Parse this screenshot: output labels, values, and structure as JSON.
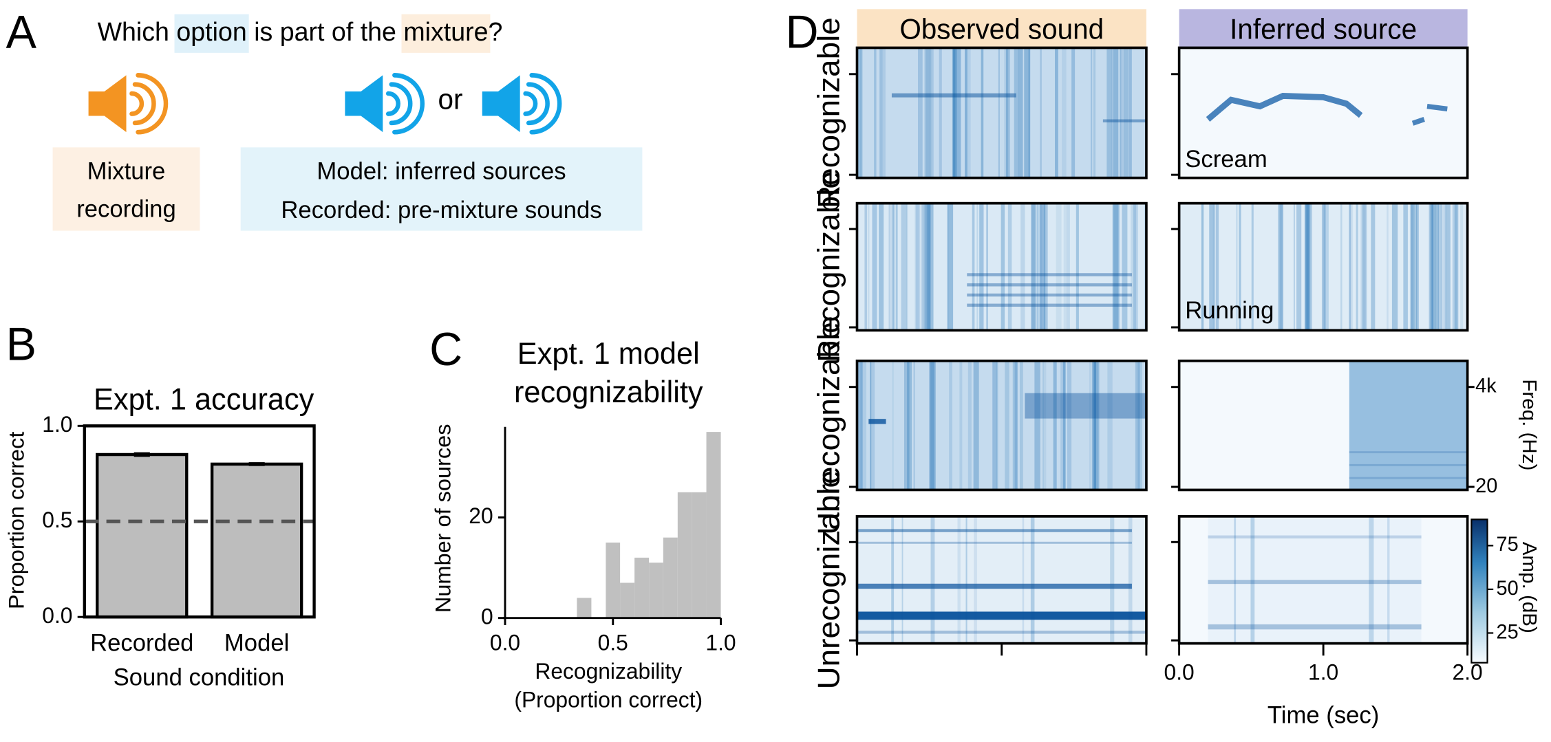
{
  "panel_a": {
    "letter": "A",
    "question_parts": [
      "Which ",
      "option",
      " is part of the ",
      "mixture",
      "?"
    ],
    "or": "or",
    "mixture_label": [
      "Mixture",
      "recording"
    ],
    "options_label": [
      "Model: inferred sources",
      "Recorded: pre-mixture sounds"
    ]
  },
  "chart_data": [
    {
      "type": "bar",
      "letter": "B",
      "title": "Expt. 1 accuracy",
      "xlabel": "Sound condition",
      "ylabel": "Proportion correct",
      "categories": [
        "Recorded",
        "Model"
      ],
      "values": [
        0.85,
        0.8
      ],
      "errors": [
        0.012,
        0.01
      ],
      "color": "#bdbdbd",
      "chance_level": 0.5,
      "ylim": [
        0,
        1
      ],
      "yticks": [
        {
          "value": 0,
          "label": "0.0"
        },
        {
          "value": 0.5,
          "label": "0.5"
        },
        {
          "value": 1,
          "label": "1.0"
        }
      ]
    },
    {
      "type": "histogram",
      "letter": "C",
      "title_lines": [
        "Expt. 1 model",
        "recognizability"
      ],
      "xlabel_lines": [
        "Recognizability",
        "(Proportion correct)"
      ],
      "ylabel": "Number of sources",
      "bins": [
        0.333,
        0.4,
        0.467,
        0.533,
        0.6,
        0.667,
        0.733,
        0.8,
        0.867,
        0.933,
        1.0
      ],
      "values": [
        4,
        0,
        15,
        7,
        12,
        11,
        16,
        25,
        25,
        37
      ],
      "color": "#c0c0c0",
      "xlim": [
        0,
        1
      ],
      "xticks": [
        {
          "value": 0,
          "label": "0.0"
        },
        {
          "value": 0.5,
          "label": "0.5"
        },
        {
          "value": 1,
          "label": "1.0"
        }
      ],
      "ylim": [
        0,
        38
      ],
      "yticks": [
        0,
        20
      ]
    },
    {
      "type": "spectrogram",
      "letter": "D",
      "column_titles": [
        "Observed sound",
        "Inferred source"
      ],
      "row_labels": [
        "Recognizable",
        "Recognizable",
        "Unrecognizable",
        "Unrecognizable"
      ],
      "annotations": [
        "Scream",
        "Running"
      ],
      "ylabel": "Freq. (Hz)",
      "log_scale": true,
      "ylim": [
        17,
        16000
      ],
      "yticks": [
        {
          "value": 4000,
          "label": "4k"
        },
        20
      ],
      "xlabel": "Time (sec)",
      "xlim": [
        0,
        2
      ],
      "xticks": [
        {
          "value": 0,
          "label": "0.0"
        },
        {
          "value": 1,
          "label": "1.0"
        },
        {
          "value": 2,
          "label": "2.0"
        }
      ],
      "colorbar_label": "Amp. (dB)",
      "clim": [
        8,
        90
      ],
      "cticks": [
        25,
        50,
        75
      ]
    }
  ]
}
